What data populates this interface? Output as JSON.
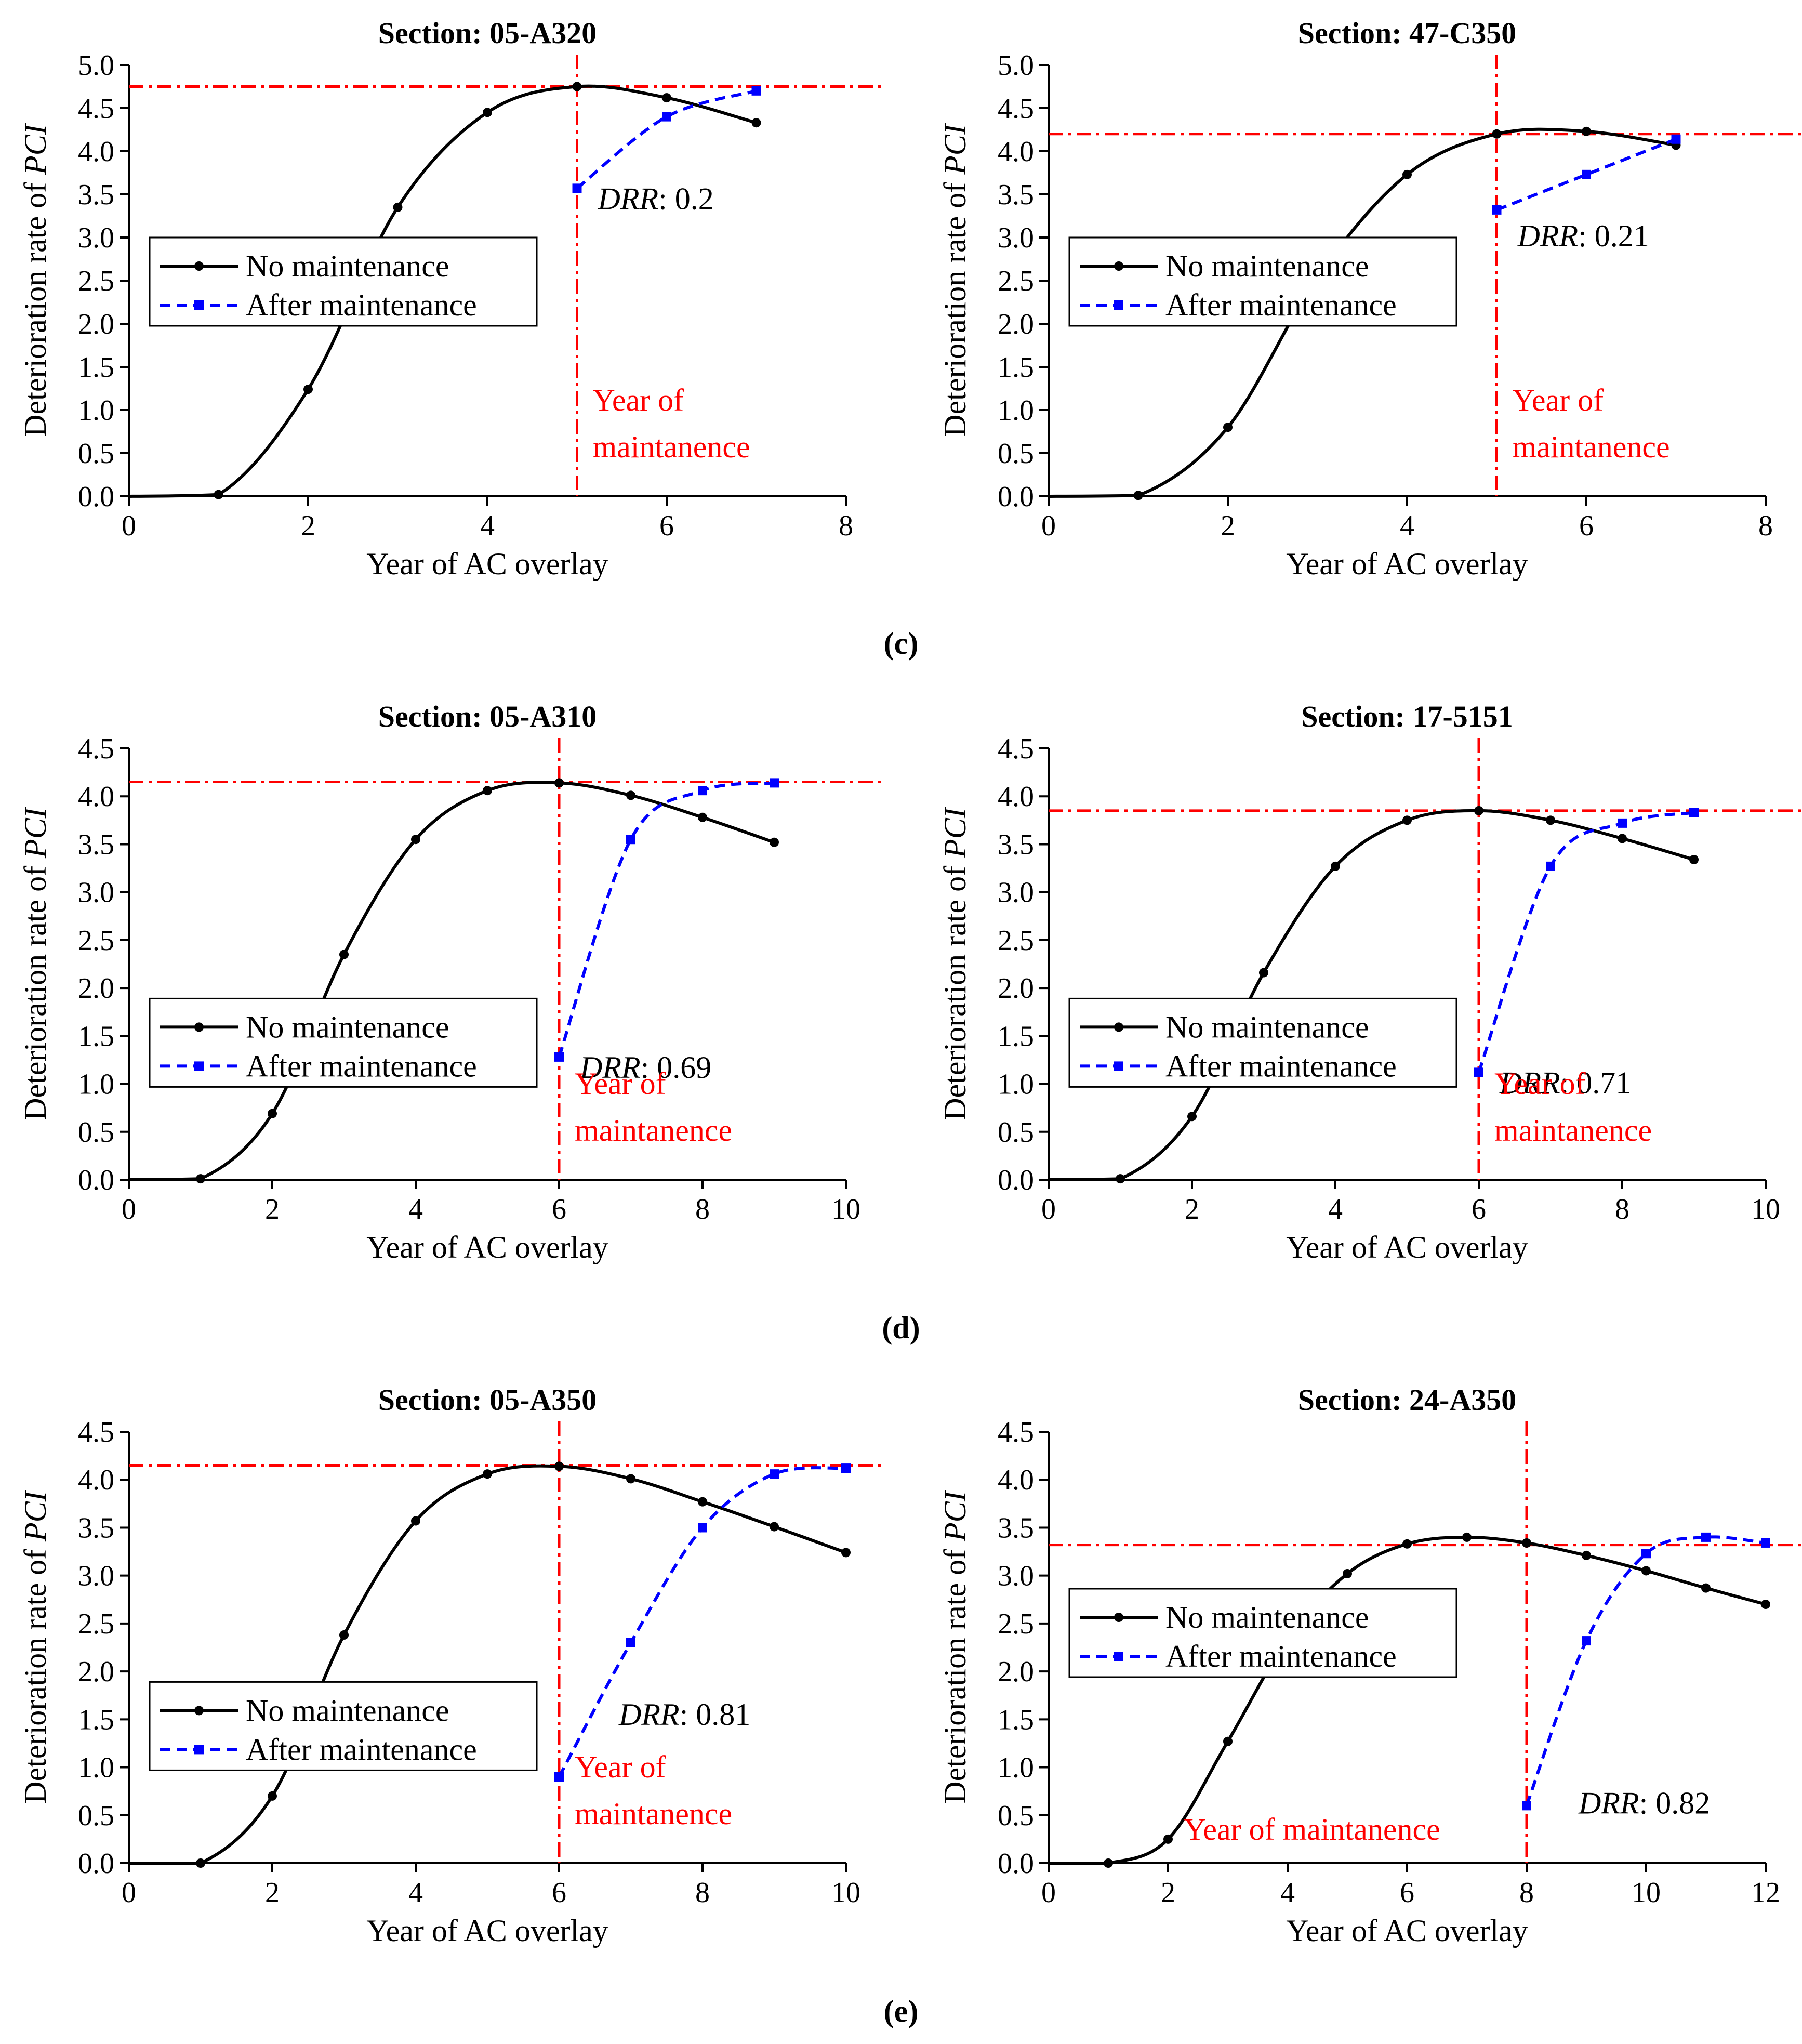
{
  "figure_labels": [
    "(c)",
    "(d)",
    "(e)"
  ],
  "legend": {
    "no_maintenance": "No maintenance",
    "after_maintenance": "After maintenance"
  },
  "colors": {
    "no_maintenance": "#000000",
    "after_maintenance": "#0000ff",
    "reference": "#ff0000"
  },
  "chart_data": [
    {
      "type": "line",
      "panel": "c-left",
      "title": "Section: 05-A320",
      "xlabel": "Year of AC overlay",
      "ylabel_prefix": "Deterioration rate of ",
      "ylabel_italic": "PCI",
      "xlim": [
        0,
        8
      ],
      "ylim": [
        0,
        5.0
      ],
      "xticks": [
        0,
        2,
        4,
        6,
        8
      ],
      "yticks": [
        0.0,
        0.5,
        1.0,
        1.5,
        2.0,
        2.5,
        3.0,
        3.5,
        4.0,
        4.5,
        5.0
      ],
      "maintenance_year": 5,
      "reference_level": 4.75,
      "drr_label": "DRR",
      "drr_value": ": 0.2",
      "year_label_lines": [
        "Year of",
        "maintanence"
      ],
      "legend_position": "middle-left",
      "series": [
        {
          "name": "No maintenance",
          "x": [
            0,
            1,
            2,
            3,
            4,
            5,
            6,
            7
          ],
          "y": [
            0.0,
            0.02,
            1.24,
            3.35,
            4.45,
            4.75,
            4.62,
            4.33
          ]
        },
        {
          "name": "After maintenance",
          "x": [
            5,
            6,
            7
          ],
          "y": [
            3.57,
            4.4,
            4.7
          ]
        }
      ]
    },
    {
      "type": "line",
      "panel": "c-right",
      "title": "Section: 47-C350",
      "xlabel": "Year of AC overlay",
      "ylabel_prefix": "Deterioration rate of ",
      "ylabel_italic": "PCI",
      "xlim": [
        0,
        8
      ],
      "ylim": [
        0,
        5.0
      ],
      "xticks": [
        0,
        2,
        4,
        6,
        8
      ],
      "yticks": [
        0.0,
        0.5,
        1.0,
        1.5,
        2.0,
        2.5,
        3.0,
        3.5,
        4.0,
        4.5,
        5.0
      ],
      "maintenance_year": 5,
      "reference_level": 4.2,
      "drr_label": "DRR",
      "drr_value": ": 0.21",
      "year_label_lines": [
        "Year of",
        "maintanence"
      ],
      "legend_position": "middle-left",
      "series": [
        {
          "name": "No maintenance",
          "x": [
            0,
            1,
            2,
            3,
            4,
            5,
            6,
            7
          ],
          "y": [
            0.0,
            0.01,
            0.8,
            2.54,
            3.73,
            4.2,
            4.23,
            4.07
          ]
        },
        {
          "name": "After maintenance",
          "x": [
            5,
            6,
            7
          ],
          "y": [
            3.32,
            3.73,
            4.14
          ]
        }
      ]
    },
    {
      "type": "line",
      "panel": "d-left",
      "title": "Section: 05-A310",
      "xlabel": "Year of AC overlay",
      "ylabel_prefix": "Deterioration rate of ",
      "ylabel_italic": "PCI",
      "xlim": [
        0,
        10
      ],
      "ylim": [
        0,
        4.5
      ],
      "xticks": [
        0,
        2,
        4,
        6,
        8,
        10
      ],
      "yticks": [
        0.0,
        0.5,
        1.0,
        1.5,
        2.0,
        2.5,
        3.0,
        3.5,
        4.0,
        4.5
      ],
      "maintenance_year": 6,
      "reference_level": 4.15,
      "drr_label": "DRR",
      "drr_value": ": 0.69",
      "year_label_lines": [
        "Year of",
        "maintanence"
      ],
      "legend_position": "lower-left",
      "series": [
        {
          "name": "No maintenance",
          "x": [
            0,
            1,
            2,
            3,
            4,
            5,
            6,
            7,
            8,
            9
          ],
          "y": [
            0.0,
            0.01,
            0.69,
            2.35,
            3.55,
            4.06,
            4.14,
            4.01,
            3.78,
            3.52
          ]
        },
        {
          "name": "After maintenance",
          "x": [
            6,
            7,
            8,
            9
          ],
          "y": [
            1.28,
            3.55,
            4.06,
            4.14
          ]
        }
      ]
    },
    {
      "type": "line",
      "panel": "d-right",
      "title": "Section: 17-5151",
      "xlabel": "Year of AC overlay",
      "ylabel_prefix": "Deterioration rate of ",
      "ylabel_italic": "PCI",
      "xlim": [
        0,
        10
      ],
      "ylim": [
        0,
        4.5
      ],
      "xticks": [
        0,
        2,
        4,
        6,
        8,
        10
      ],
      "yticks": [
        0.0,
        0.5,
        1.0,
        1.5,
        2.0,
        2.5,
        3.0,
        3.5,
        4.0,
        4.5
      ],
      "maintenance_year": 6,
      "reference_level": 3.85,
      "drr_label": "DRR",
      "drr_value": ": 0.71",
      "year_label_lines": [
        "Year of",
        "maintanence"
      ],
      "legend_position": "lower-left",
      "series": [
        {
          "name": "No maintenance",
          "x": [
            0,
            1,
            2,
            3,
            4,
            5,
            6,
            7,
            8,
            9
          ],
          "y": [
            0.0,
            0.01,
            0.66,
            2.16,
            3.27,
            3.75,
            3.85,
            3.75,
            3.56,
            3.34
          ]
        },
        {
          "name": "After maintenance",
          "x": [
            6,
            7,
            8,
            9
          ],
          "y": [
            1.12,
            3.27,
            3.72,
            3.83
          ]
        }
      ]
    },
    {
      "type": "line",
      "panel": "e-left",
      "title": "Section: 05-A350",
      "xlabel": "Year of AC overlay",
      "ylabel_prefix": "Deterioration rate of ",
      "ylabel_italic": "PCI",
      "xlim": [
        0,
        10
      ],
      "ylim": [
        0,
        4.5
      ],
      "xticks": [
        0,
        2,
        4,
        6,
        8,
        10
      ],
      "yticks": [
        0.0,
        0.5,
        1.0,
        1.5,
        2.0,
        2.5,
        3.0,
        3.5,
        4.0,
        4.5
      ],
      "maintenance_year": 6,
      "reference_level": 4.15,
      "drr_label": "DRR",
      "drr_value": ": 0.81",
      "year_label_lines": [
        "Year of",
        "maintanence"
      ],
      "legend_position": "lower-left",
      "series": [
        {
          "name": "No maintenance",
          "x": [
            0,
            1,
            2,
            3,
            4,
            5,
            6,
            7,
            8,
            9,
            10
          ],
          "y": [
            0.0,
            0.0,
            0.7,
            2.38,
            3.57,
            4.06,
            4.14,
            4.01,
            3.77,
            3.51,
            3.24
          ]
        },
        {
          "name": "After maintenance",
          "x": [
            6,
            7,
            8,
            9,
            10
          ],
          "y": [
            0.9,
            2.3,
            3.5,
            4.06,
            4.12
          ]
        }
      ]
    },
    {
      "type": "line",
      "panel": "e-right",
      "title": "Section: 24-A350",
      "xlabel": "Year of AC overlay",
      "ylabel_prefix": "Deterioration rate of ",
      "ylabel_italic": "PCI",
      "xlim": [
        0,
        12
      ],
      "ylim": [
        0,
        4.5
      ],
      "xticks": [
        0,
        2,
        4,
        6,
        8,
        10,
        12
      ],
      "yticks": [
        0.0,
        0.5,
        1.0,
        1.5,
        2.0,
        2.5,
        3.0,
        3.5,
        4.0,
        4.5
      ],
      "maintenance_year": 8,
      "reference_level": 3.32,
      "drr_label": "DRR",
      "drr_value": ": 0.82",
      "year_label_lines": [
        "Year of maintanence"
      ],
      "legend_position": "middle-left",
      "series": [
        {
          "name": "No maintenance",
          "x": [
            0,
            1,
            2,
            3,
            4,
            5,
            6,
            7,
            8,
            9,
            10,
            11,
            12
          ],
          "y": [
            0.0,
            0.0,
            0.25,
            1.27,
            2.34,
            3.02,
            3.33,
            3.4,
            3.34,
            3.21,
            3.05,
            2.87,
            2.7
          ]
        },
        {
          "name": "After maintenance",
          "x": [
            8,
            9,
            10,
            11,
            12
          ],
          "y": [
            0.6,
            2.32,
            3.23,
            3.4,
            3.34
          ]
        }
      ]
    }
  ]
}
